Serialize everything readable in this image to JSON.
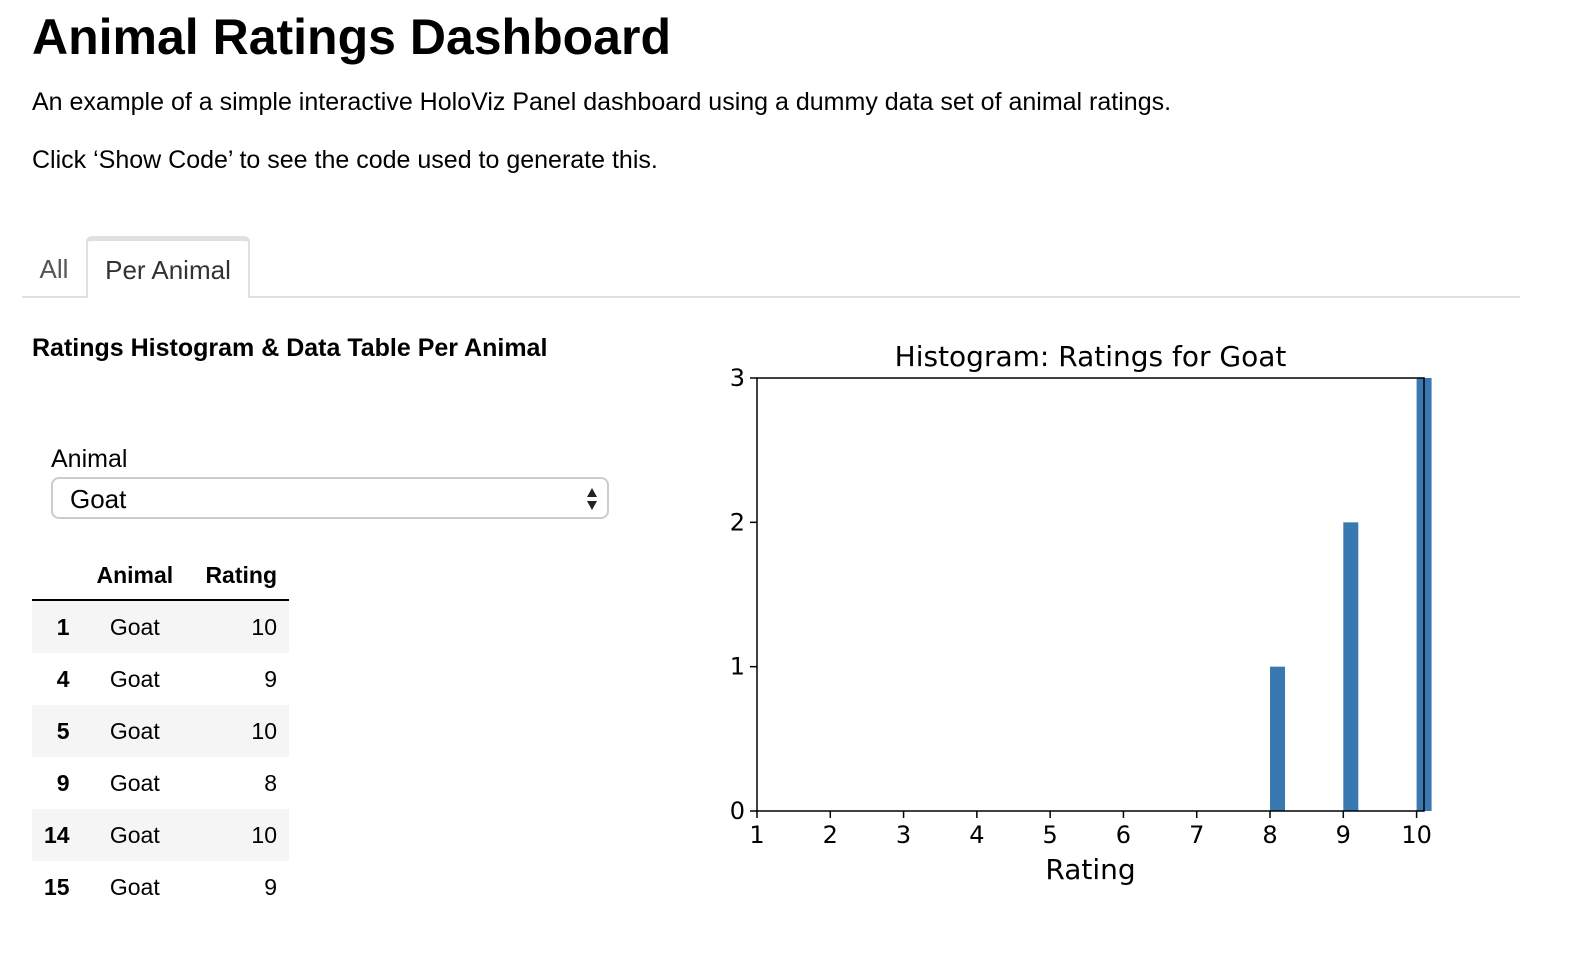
{
  "header": {
    "title": "Animal Ratings Dashboard",
    "description": "An example of a simple interactive HoloViz Panel dashboard using a dummy data set of animal ratings.",
    "hint": "Click ‘Show Code’ to see the code used to generate this."
  },
  "tabs": [
    {
      "label": "All",
      "active": false
    },
    {
      "label": "Per Animal",
      "active": true
    }
  ],
  "panel": {
    "title": "Ratings Histogram & Data Table Per Animal",
    "select": {
      "label": "Animal",
      "value": "Goat"
    },
    "table": {
      "headers": [
        "",
        "Animal",
        "Rating"
      ],
      "rows": [
        {
          "index": "1",
          "animal": "Goat",
          "rating": "10"
        },
        {
          "index": "4",
          "animal": "Goat",
          "rating": "9"
        },
        {
          "index": "5",
          "animal": "Goat",
          "rating": "10"
        },
        {
          "index": "9",
          "animal": "Goat",
          "rating": "8"
        },
        {
          "index": "14",
          "animal": "Goat",
          "rating": "10"
        },
        {
          "index": "15",
          "animal": "Goat",
          "rating": "9"
        }
      ]
    }
  },
  "chart_data": {
    "type": "bar",
    "title": "Histogram: Ratings for Goat",
    "xlabel": "Rating",
    "ylabel": "",
    "x": [
      8,
      9,
      10
    ],
    "values": [
      1,
      2,
      3
    ],
    "xlim": [
      1,
      10
    ],
    "ylim": [
      0,
      3
    ],
    "xticks": [
      1,
      2,
      3,
      4,
      5,
      6,
      7,
      8,
      9,
      10
    ],
    "yticks": [
      0,
      1,
      2,
      3
    ],
    "color": "#3a78b2",
    "grid": false
  }
}
